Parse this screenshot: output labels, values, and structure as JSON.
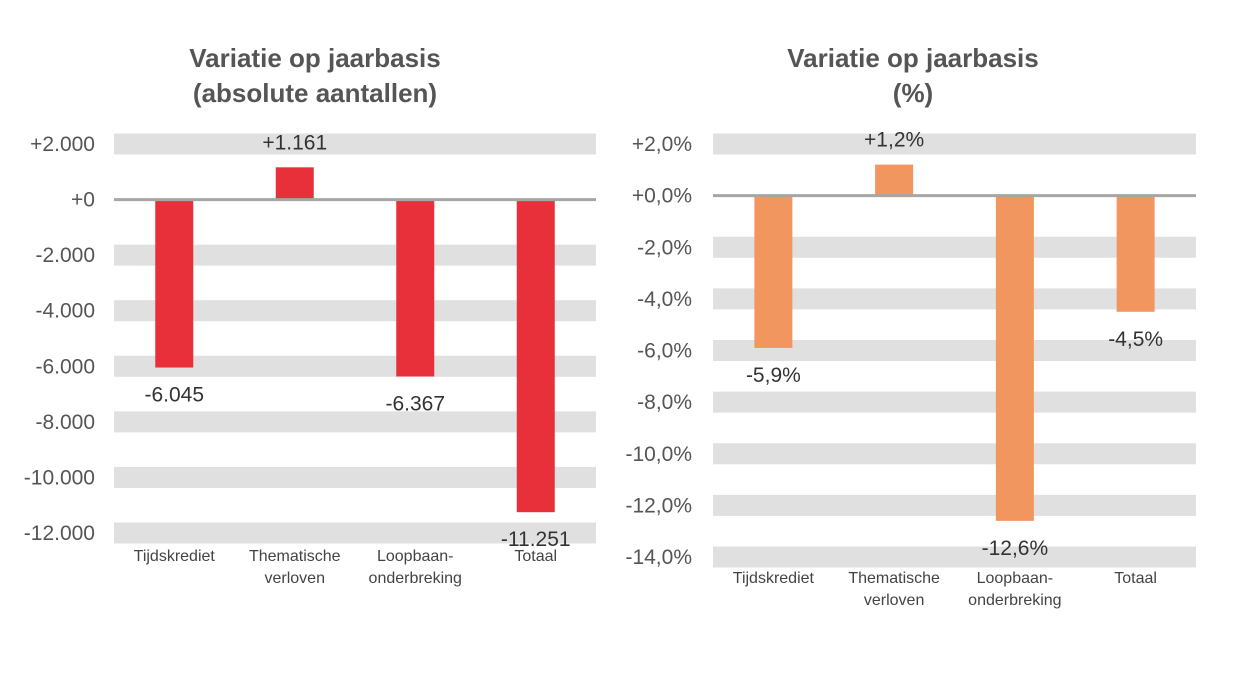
{
  "chart_data": [
    {
      "type": "bar",
      "title": "Variatie op jaarbasis\n(absolute aantallen)",
      "title_lines": [
        "Variatie op jaarbasis",
        "(absolute aantallen)"
      ],
      "categories": [
        [
          "Tijdskrediet"
        ],
        [
          "Thematische",
          "verloven"
        ],
        [
          "Loopbaan-",
          "onderbreking"
        ],
        [
          "Totaal"
        ]
      ],
      "values": [
        -6045,
        1161,
        -6367,
        -11251
      ],
      "data_labels": [
        "-6.045",
        "+1.161",
        "-6.367",
        "-11.251"
      ],
      "ylim": [
        -12000,
        2000
      ],
      "yticks": [
        2000,
        0,
        -2000,
        -4000,
        -6000,
        -8000,
        -10000,
        -12000
      ],
      "ytick_labels": [
        "+2.000",
        "+0",
        "-2.000",
        "-4.000",
        "-6.000",
        "-8.000",
        "-10.000",
        "-12.000"
      ],
      "grid": "horizontal bands",
      "color": "#E8303A",
      "band_color": "#E0E0E0",
      "zero_line_color": "#A6A6A6"
    },
    {
      "type": "bar",
      "title": "Variatie op jaarbasis\n(%)",
      "title_lines": [
        "Variatie op jaarbasis",
        "(%)"
      ],
      "categories": [
        [
          "Tijdskrediet"
        ],
        [
          "Thematische",
          "verloven"
        ],
        [
          "Loopbaan-",
          "onderbreking"
        ],
        [
          "Totaal"
        ]
      ],
      "values": [
        -5.9,
        1.2,
        -12.6,
        -4.5
      ],
      "data_labels": [
        "-5,9%",
        "+1,2%",
        "-12,6%",
        "-4,5%"
      ],
      "ylim": [
        -14,
        2
      ],
      "yticks": [
        2,
        0,
        -2,
        -4,
        -6,
        -8,
        -10,
        -12,
        -14
      ],
      "ytick_labels": [
        "+2,0%",
        "+0,0%",
        "-2,0%",
        "-4,0%",
        "-6,0%",
        "-8,0%",
        "-10,0%",
        "-12,0%",
        "-14,0%"
      ],
      "grid": "horizontal bands",
      "color": "#F0965E",
      "band_color": "#E0E0E0",
      "zero_line_color": "#A6A6A6"
    }
  ]
}
